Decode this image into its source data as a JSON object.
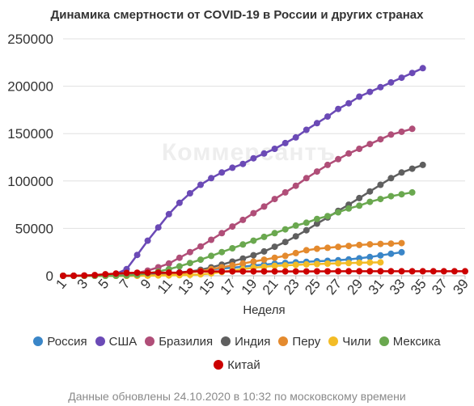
{
  "chart_data": {
    "type": "line",
    "title": "Динамика смертности от COVID-19 в России и других странах",
    "xlabel": "Неделя",
    "ylabel": "",
    "ylim": [
      0,
      250000
    ],
    "xlim": [
      1,
      39
    ],
    "yticks": [
      "0",
      "50000",
      "100000",
      "150000",
      "200000",
      "250000"
    ],
    "xticks": [
      "1",
      "3",
      "5",
      "7",
      "9",
      "11",
      "13",
      "15",
      "17",
      "19",
      "21",
      "23",
      "25",
      "27",
      "29",
      "31",
      "33",
      "35",
      "37",
      "39"
    ],
    "grid": true,
    "legend_position": "bottom",
    "series": [
      {
        "name": "Россия",
        "color": "#3a86c8",
        "values": [
          0,
          0,
          0,
          0,
          0,
          100,
          300,
          600,
          1200,
          1800,
          2500,
          3600,
          4600,
          5700,
          6800,
          7700,
          8500,
          9600,
          10800,
          11900,
          12800,
          13600,
          14200,
          14800,
          15400,
          15800,
          16400,
          17200,
          18400,
          19800,
          21500,
          23200,
          24800
        ]
      },
      {
        "name": "США",
        "color": "#6b4ab6",
        "values": [
          0,
          0,
          0,
          0,
          500,
          2000,
          7000,
          22000,
          37000,
          51000,
          65000,
          77000,
          87000,
          96000,
          103000,
          109000,
          114000,
          118000,
          124000,
          129000,
          134000,
          140000,
          146000,
          154000,
          161000,
          168000,
          176000,
          182000,
          189000,
          194000,
          199000,
          204000,
          209000,
          214000,
          219000
        ]
      },
      {
        "name": "Бразилия",
        "color": "#b04e78",
        "values": [
          0,
          0,
          0,
          0,
          0,
          300,
          1000,
          3000,
          5500,
          9000,
          13000,
          19000,
          25000,
          31000,
          38000,
          45000,
          52000,
          59000,
          66000,
          73000,
          81000,
          88000,
          95000,
          103000,
          110000,
          117000,
          123000,
          129000,
          134000,
          139000,
          144000,
          149000,
          152000,
          155000
        ]
      },
      {
        "name": "Индия",
        "color": "#5f5f5f",
        "values": [
          0,
          0,
          0,
          0,
          0,
          0,
          50,
          200,
          600,
          1100,
          1800,
          2900,
          4400,
          6300,
          8900,
          11800,
          14900,
          18200,
          21700,
          25700,
          30600,
          35700,
          41600,
          48000,
          55000,
          61500,
          68500,
          75000,
          82000,
          89000,
          96000,
          103000,
          109000,
          113000,
          117000
        ]
      },
      {
        "name": "Перу",
        "color": "#e48a2e",
        "values": [
          0,
          0,
          0,
          0,
          0,
          0,
          0,
          100,
          200,
          500,
          1000,
          2000,
          3500,
          5000,
          7000,
          9000,
          11000,
          13000,
          15000,
          17000,
          19000,
          21000,
          24000,
          27000,
          28500,
          29500,
          30500,
          31500,
          32500,
          33200,
          33600,
          34000,
          34500
        ]
      },
      {
        "name": "Чили",
        "color": "#f3bc26",
        "values": [
          0,
          0,
          0,
          0,
          0,
          0,
          0,
          100,
          200,
          300,
          400,
          600,
          900,
          1500,
          2500,
          4000,
          5500,
          7000,
          8500,
          9500,
          10500,
          11000,
          11500,
          12000,
          12400,
          12800,
          13100,
          13400,
          13700,
          14000,
          14200
        ]
      },
      {
        "name": "Мексика",
        "color": "#6aa84f",
        "values": [
          0,
          0,
          0,
          0,
          0,
          100,
          300,
          1000,
          2500,
          4500,
          7000,
          10000,
          13500,
          17000,
          21000,
          25000,
          29000,
          33000,
          37000,
          41000,
          45000,
          49000,
          53000,
          56000,
          60000,
          63000,
          67000,
          71000,
          74000,
          78000,
          81000,
          84000,
          86000,
          88000
        ]
      },
      {
        "name": "Китай",
        "color": "#cc0000",
        "values": [
          0,
          100,
          300,
          800,
          1600,
          2400,
          3000,
          3200,
          3250,
          3300,
          3330,
          3340,
          4600,
          4630,
          4640,
          4640,
          4640,
          4640,
          4640,
          4640,
          4640,
          4640,
          4650,
          4650,
          4700,
          4720,
          4740,
          4740,
          4740,
          4740,
          4740,
          4740,
          4740,
          4740,
          4740,
          4740,
          4740,
          4740,
          4740
        ]
      }
    ]
  },
  "footer": {
    "update_note": "Данные обновлены 24.10.2020 в 10:32 по московскому времени"
  }
}
